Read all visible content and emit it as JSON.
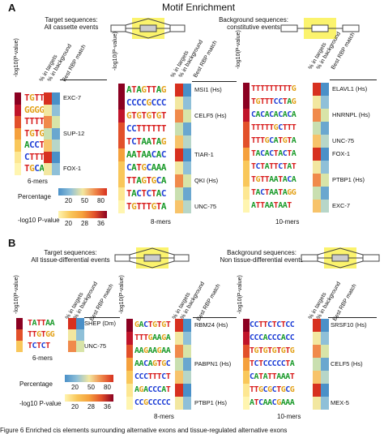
{
  "figure_title": "Motif Enrichment",
  "panel_a": {
    "letter": "A",
    "target_label_line1": "Target sequences:",
    "target_label_line2": "All cassette events",
    "background_label_line1": "Background sequences:",
    "background_label_line2": "constitutive events",
    "col_pvalue": "-log10(P-value)",
    "col_targets": "% in targets",
    "col_background": "% in background",
    "col_rbp": "Best RBP match",
    "six_mers": {
      "label": "6-mers",
      "motifs": [
        "TGTTAG",
        "GGGGGG",
        "TTTTAT",
        "TGTGTG",
        "ACCTAG",
        "CTTTTT",
        "TGCATG"
      ],
      "rbp": [
        "EXC-7",
        "SUP-12",
        "FOX-1"
      ]
    },
    "eight_mers": {
      "label": "8-mers",
      "motifs": [
        "ATAGTTAG",
        "CCCCGCCC",
        "GTGTGTGT",
        "CCTTTTTT",
        "TCTAATAG",
        "AATAACAC",
        "CATGCAAA",
        "TTAGTGCA",
        "TACTCTAC",
        "TGTTTGTA"
      ],
      "rbp": [
        "MSI1 (Hs)",
        "CELF5 (Hs)",
        "TIAR-1",
        "QKI (Hs)",
        "UNC-75"
      ]
    },
    "ten_mers": {
      "label": "10-mers",
      "motifs": [
        "TTTTTTTTTG",
        "TGTTTCCTAG",
        "CACACACACA",
        "TTTTTGCTTT",
        "TTTGCATGTA",
        "TACACTACTA",
        "TCTATTCTAT",
        "TGTTAATACA",
        "TACTAATAGG",
        "ATTAATAAT"
      ],
      "rbp": [
        "ELAVL1 (Hs)",
        "HNRNPL (Hs)",
        "UNC-75",
        "FOX-1",
        "PTBP1 (Hs)",
        "EXC-7"
      ]
    },
    "legend_percentage": "Percentage",
    "legend_pct_ticks": [
      "20",
      "50",
      "80"
    ],
    "legend_pvalue": "-log10 P-value",
    "legend_pv_ticks": [
      "20",
      "28",
      "36"
    ]
  },
  "panel_b": {
    "letter": "B",
    "target_label_line1": "Target sequences:",
    "target_label_line2": "All tissue-differential events",
    "background_label_line1": "Background sequences:",
    "background_label_line2": "Non tissue-differential events",
    "col_pvalue": "-log10(P-value)",
    "col_targets": "% in targets",
    "col_background": "% in background",
    "col_rbp": "Best RBP match",
    "six_mers": {
      "label": "6-mers",
      "motifs": [
        "TATTAA",
        "TTGTGG",
        "TCTCT"
      ],
      "rbp": [
        "SHEP (Dm)",
        "UNC-75"
      ]
    },
    "eight_mers": {
      "label": "8-mers",
      "motifs": [
        "GACTGTGT",
        "TTTGAAGA",
        "AAGAAGAA",
        "AACAGTGC",
        "CCCTTTCT",
        "AGACCCAT",
        "CCGCCCCC"
      ],
      "rbp": [
        "RBM24 (Hs)",
        "PABPN1 (Hs)",
        "PTBP1 (Hs)"
      ]
    },
    "ten_mers": {
      "label": "10-mers",
      "motifs": [
        "CCTTCTCTCC",
        "CCCACCCACC",
        "TGTGTGTGTG",
        "TCTCCCCCTA",
        "CATATTAAAT",
        "TTGCGCTGCG",
        "ATCAACGAAA"
      ],
      "rbp": [
        "SRSF10 (Hs)",
        "CELF5 (Hs)",
        "MEX-5"
      ]
    },
    "legend_percentage": "Percentage",
    "legend_pct_ticks": [
      "20",
      "50",
      "80"
    ],
    "legend_pvalue": "-log10 P-value",
    "legend_pv_ticks": [
      "20",
      "28",
      "36"
    ]
  },
  "caption": "Figure 6    Enriched cis elements surrounding alternative exons and tissue-regulated alternative exons",
  "colors": {
    "pct_low": "#4a90c8",
    "pct_mid": "#f2e7a0",
    "pct_high": "#d7301f",
    "pv_low": "#fff5b0",
    "pv_mid": "#f5a03c",
    "pv_high": "#8b0021",
    "highlight": "#fbf36d"
  }
}
